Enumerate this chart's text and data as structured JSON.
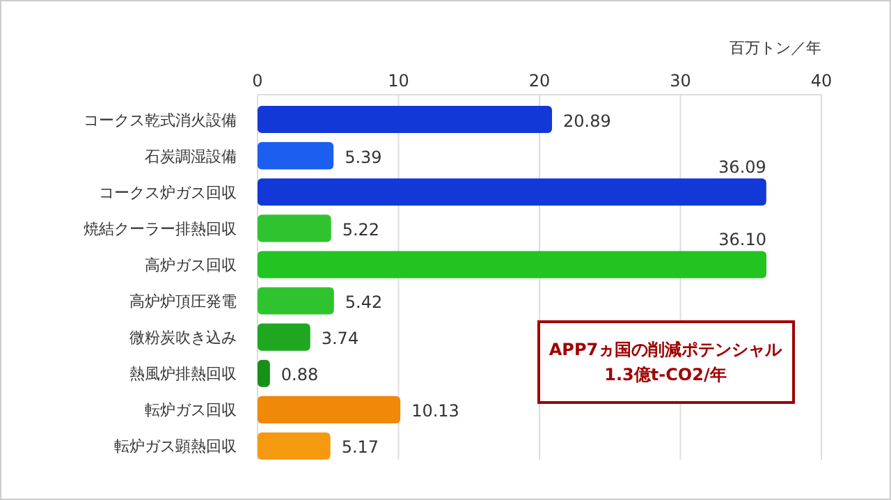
{
  "chart_data": {
    "type": "bar",
    "orientation": "horizontal",
    "xlabel": "百万トン／年",
    "categories": [
      "コークス乾式消火設備",
      "石炭調湿設備",
      "コークス炉ガス回収",
      "焼結クーラー排熱回収",
      "高炉ガス回収",
      "高炉炉頂圧発電",
      "微粉炭吹き込み",
      "熱風炉排熱回収",
      "転炉ガス回収",
      "転炉ガス顕熱回収"
    ],
    "values": [
      20.89,
      5.39,
      36.09,
      5.22,
      36.1,
      5.42,
      3.74,
      0.88,
      10.13,
      5.17
    ],
    "colors": [
      "#1238d8",
      "#1c5ef0",
      "#1238d8",
      "#2fc42f",
      "#22c422",
      "#2fc42f",
      "#1fa81f",
      "#169016",
      "#f0880a",
      "#f59a10"
    ],
    "value_labels": [
      "20.89",
      "5.39",
      "36.09",
      "5.22",
      "36.10",
      "5.42",
      "3.74",
      "0.88",
      "10.13",
      "5.17"
    ],
    "xlim": [
      0,
      40
    ],
    "xticks": [
      0,
      10,
      20,
      30,
      40
    ],
    "grid": "x",
    "annotations": [
      "APP7ヵ国の削減ポテンシャル\n1.3億t-CO2/年"
    ]
  }
}
